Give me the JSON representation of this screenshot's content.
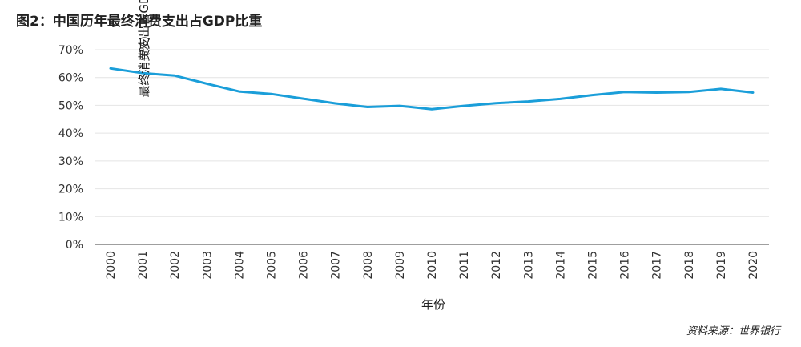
{
  "title": "图2：中国历年最终消费支出占GDP比重",
  "source": "资料来源：世界银行",
  "chart_data": {
    "type": "line",
    "title": "图2：中国历年最终消费支出占GDP比重",
    "xlabel": "年份",
    "ylabel_line1": "最终消费支出占GDP比重",
    "ylabel_line2": "(%)",
    "ylim": [
      0,
      70
    ],
    "yticks": [
      0,
      10,
      20,
      30,
      40,
      50,
      60,
      70
    ],
    "ytick_labels": [
      "0%",
      "10%",
      "20%",
      "30%",
      "40%",
      "50%",
      "60%",
      "70%"
    ],
    "grid": true,
    "line_color": "#1a9ed9",
    "categories": [
      "2000",
      "2001",
      "2002",
      "2003",
      "2004",
      "2005",
      "2006",
      "2007",
      "2008",
      "2009",
      "2010",
      "2011",
      "2012",
      "2013",
      "2014",
      "2015",
      "2016",
      "2017",
      "2018",
      "2019",
      "2020"
    ],
    "series": [
      {
        "values": [
          63.3,
          61.6,
          60.7,
          57.8,
          55.0,
          54.1,
          52.4,
          50.7,
          49.4,
          49.8,
          48.6,
          49.8,
          50.8,
          51.4,
          52.3,
          53.7,
          54.8,
          54.6,
          54.8,
          55.9,
          54.6
        ]
      }
    ]
  }
}
